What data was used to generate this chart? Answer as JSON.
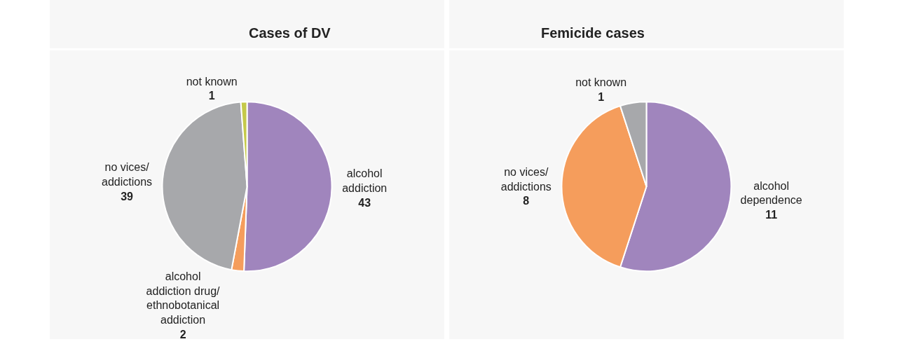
{
  "chart_data": [
    {
      "type": "pie",
      "title": "Cases of DV",
      "categories": [
        "alcohol addiction",
        "alcohol addiction drug/ethnobotanical addiction",
        "no vices/addictions",
        "not known"
      ],
      "values": [
        43,
        2,
        39,
        1
      ],
      "colors": [
        "#a085bd",
        "#f59d5c",
        "#a7a8ab",
        "#c5c94a"
      ],
      "data_labels": true,
      "legend": false
    },
    {
      "type": "pie",
      "title": "Femicide cases",
      "categories": [
        "alcohol dependence",
        "no vices/addictions",
        "not known"
      ],
      "values": [
        11,
        8,
        1
      ],
      "colors": [
        "#a085bd",
        "#f59d5c",
        "#a7a8ab"
      ],
      "data_labels": true,
      "legend": false
    }
  ]
}
